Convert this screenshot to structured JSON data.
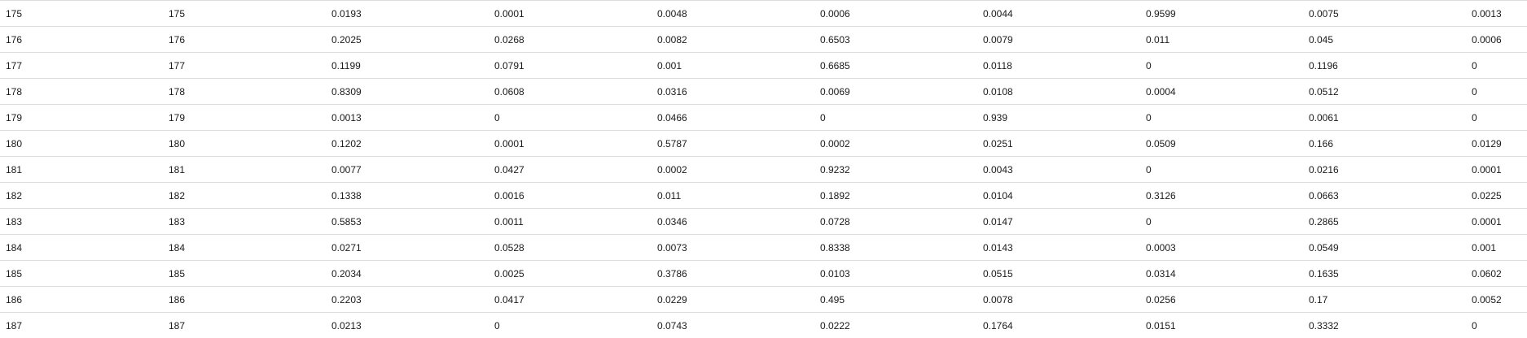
{
  "table": {
    "rows": [
      [
        "175",
        "175",
        "0.0193",
        "0.0001",
        "0.0048",
        "0.0006",
        "0.0044",
        "0.9599",
        "0.0075",
        "0.0013"
      ],
      [
        "176",
        "176",
        "0.2025",
        "0.0268",
        "0.0082",
        "0.6503",
        "0.0079",
        "0.011",
        "0.045",
        "0.0006"
      ],
      [
        "177",
        "177",
        "0.1199",
        "0.0791",
        "0.001",
        "0.6685",
        "0.0118",
        "0",
        "0.1196",
        "0"
      ],
      [
        "178",
        "178",
        "0.8309",
        "0.0608",
        "0.0316",
        "0.0069",
        "0.0108",
        "0.0004",
        "0.0512",
        "0"
      ],
      [
        "179",
        "179",
        "0.0013",
        "0",
        "0.0466",
        "0",
        "0.939",
        "0",
        "0.0061",
        "0"
      ],
      [
        "180",
        "180",
        "0.1202",
        "0.0001",
        "0.5787",
        "0.0002",
        "0.0251",
        "0.0509",
        "0.166",
        "0.0129"
      ],
      [
        "181",
        "181",
        "0.0077",
        "0.0427",
        "0.0002",
        "0.9232",
        "0.0043",
        "0",
        "0.0216",
        "0.0001"
      ],
      [
        "182",
        "182",
        "0.1338",
        "0.0016",
        "0.011",
        "0.1892",
        "0.0104",
        "0.3126",
        "0.0663",
        "0.0225"
      ],
      [
        "183",
        "183",
        "0.5853",
        "0.0011",
        "0.0346",
        "0.0728",
        "0.0147",
        "0",
        "0.2865",
        "0.0001"
      ],
      [
        "184",
        "184",
        "0.0271",
        "0.0528",
        "0.0073",
        "0.8338",
        "0.0143",
        "0.0003",
        "0.0549",
        "0.001"
      ],
      [
        "185",
        "185",
        "0.2034",
        "0.0025",
        "0.3786",
        "0.0103",
        "0.0515",
        "0.0314",
        "0.1635",
        "0.0602"
      ],
      [
        "186",
        "186",
        "0.2203",
        "0.0417",
        "0.0229",
        "0.495",
        "0.0078",
        "0.0256",
        "0.17",
        "0.0052"
      ],
      [
        "187",
        "187",
        "0.0213",
        "0",
        "0.0743",
        "0.0222",
        "0.1764",
        "0.0151",
        "0.3332",
        "0"
      ]
    ]
  }
}
